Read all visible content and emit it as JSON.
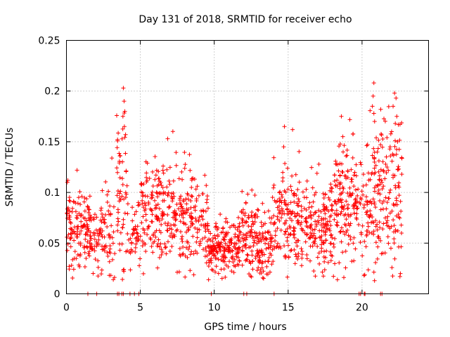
{
  "chart_data": {
    "type": "scatter",
    "title": "Day 131 of 2018, SRMTID for receiver echo",
    "xlabel": "GPS time / hours",
    "ylabel": "SRMTID / TECUs",
    "xlim": [
      0,
      24.5
    ],
    "ylim": [
      0,
      0.25
    ],
    "grid": true,
    "marker": "+",
    "color": "#ff0000",
    "x_ticks": [
      0,
      5,
      10,
      15,
      20
    ],
    "x_tick_labels": [
      "0",
      "5",
      "10",
      "15",
      "20"
    ],
    "y_ticks": [
      0,
      0.05,
      0.1,
      0.15,
      0.2,
      0.25
    ],
    "y_tick_labels": [
      "0",
      "0.05",
      "0.1",
      "0.15",
      "0.2",
      "0.25"
    ],
    "series": [
      {
        "name": "SRMTID",
        "segments": [
          {
            "x_start": 0.0,
            "x_end": 1.6,
            "mean": 0.065,
            "spread": 0.022,
            "count": 130
          },
          {
            "x_start": 1.6,
            "x_end": 2.3,
            "mean": 0.055,
            "spread": 0.02,
            "count": 40
          },
          {
            "x_start": 2.3,
            "x_end": 3.3,
            "mean": 0.06,
            "spread": 0.025,
            "count": 60
          },
          {
            "x_start": 3.4,
            "x_end": 4.2,
            "mean": 0.095,
            "spread": 0.04,
            "count": 60
          },
          {
            "x_start": 4.2,
            "x_end": 5.0,
            "mean": 0.06,
            "spread": 0.02,
            "count": 40
          },
          {
            "x_start": 5.0,
            "x_end": 7.0,
            "mean": 0.08,
            "spread": 0.025,
            "count": 150
          },
          {
            "x_start": 7.0,
            "x_end": 9.6,
            "mean": 0.075,
            "spread": 0.025,
            "count": 190
          },
          {
            "x_start": 9.6,
            "x_end": 11.8,
            "mean": 0.045,
            "spread": 0.012,
            "count": 190
          },
          {
            "x_start": 11.8,
            "x_end": 12.9,
            "mean": 0.06,
            "spread": 0.02,
            "count": 90
          },
          {
            "x_start": 12.9,
            "x_end": 14.0,
            "mean": 0.05,
            "spread": 0.018,
            "count": 90
          },
          {
            "x_start": 14.0,
            "x_end": 15.8,
            "mean": 0.075,
            "spread": 0.025,
            "count": 140
          },
          {
            "x_start": 15.8,
            "x_end": 18.0,
            "mean": 0.07,
            "spread": 0.022,
            "count": 170
          },
          {
            "x_start": 18.0,
            "x_end": 19.2,
            "mean": 0.09,
            "spread": 0.03,
            "count": 110
          },
          {
            "x_start": 19.2,
            "x_end": 20.8,
            "mean": 0.085,
            "spread": 0.025,
            "count": 110
          },
          {
            "x_start": 20.8,
            "x_end": 22.7,
            "mean": 0.1,
            "spread": 0.04,
            "count": 160
          }
        ],
        "peaks": [
          {
            "x": 3.85,
            "y": 0.203
          },
          {
            "x": 3.9,
            "y": 0.19
          },
          {
            "x": 3.95,
            "y": 0.18
          },
          {
            "x": 3.82,
            "y": 0.175
          },
          {
            "x": 3.92,
            "y": 0.165
          },
          {
            "x": 4.0,
            "y": 0.157
          },
          {
            "x": 14.75,
            "y": 0.165
          },
          {
            "x": 15.3,
            "y": 0.162
          },
          {
            "x": 14.7,
            "y": 0.145
          },
          {
            "x": 18.6,
            "y": 0.175
          },
          {
            "x": 18.7,
            "y": 0.155
          },
          {
            "x": 6.85,
            "y": 0.153
          },
          {
            "x": 20.8,
            "y": 0.208
          },
          {
            "x": 20.75,
            "y": 0.195
          },
          {
            "x": 20.7,
            "y": 0.185
          },
          {
            "x": 20.8,
            "y": 0.178
          },
          {
            "x": 20.85,
            "y": 0.17
          },
          {
            "x": 22.2,
            "y": 0.198
          },
          {
            "x": 22.3,
            "y": 0.193
          },
          {
            "x": 22.1,
            "y": 0.185
          },
          {
            "x": 22.35,
            "y": 0.175
          },
          {
            "x": 22.25,
            "y": 0.168
          },
          {
            "x": 22.0,
            "y": 0.16
          },
          {
            "x": 22.4,
            "y": 0.15
          },
          {
            "x": 21.9,
            "y": 0.145
          }
        ],
        "zeros": [
          1.45,
          2.05,
          3.45,
          3.55,
          3.75,
          3.85,
          4.3,
          4.6,
          4.9,
          9.8,
          12.0,
          12.2,
          14.05,
          19.8,
          19.9,
          20.15,
          20.2,
          21.25,
          21.35
        ]
      }
    ]
  }
}
